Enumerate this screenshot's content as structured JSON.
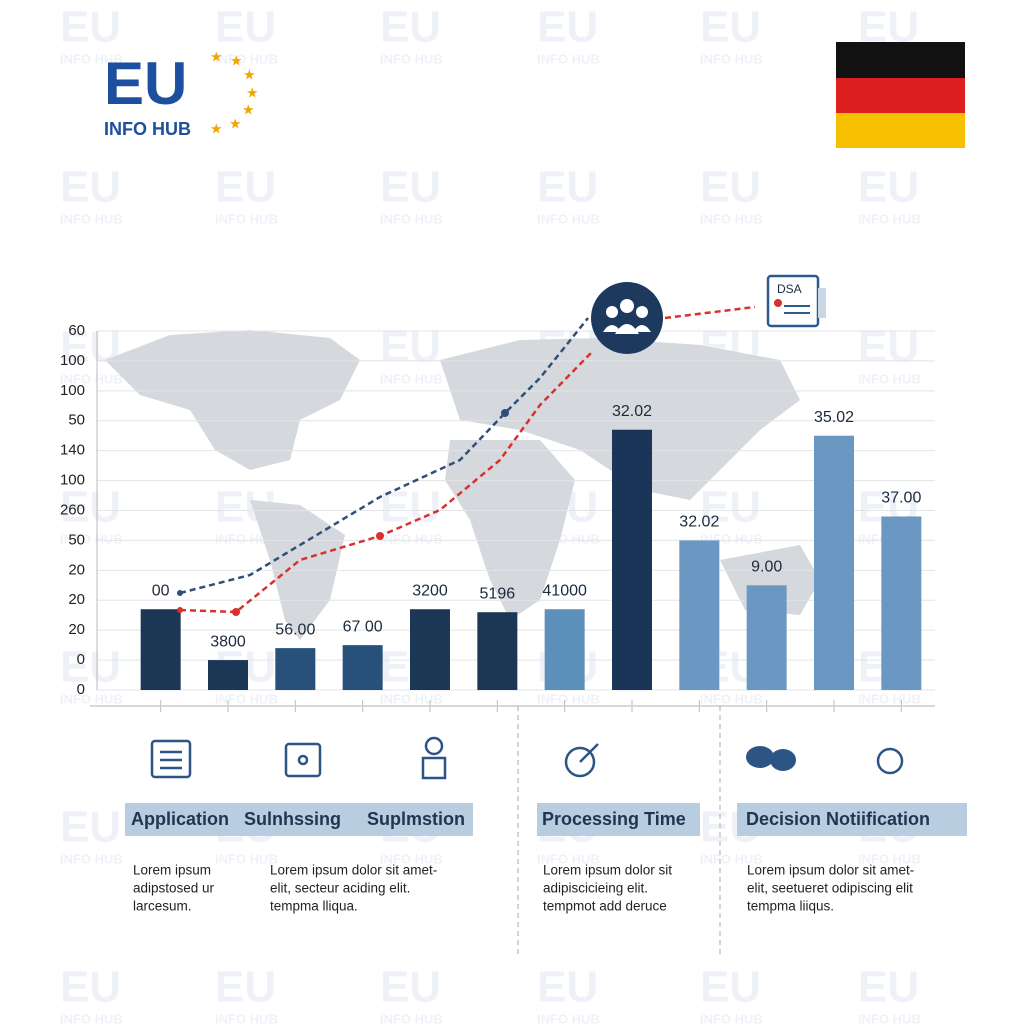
{
  "logo": {
    "main": "EU",
    "sub": "INFO HUB"
  },
  "badge": "DSA",
  "chart_data": {
    "type": "bar",
    "categories": [
      null,
      null,
      null,
      null,
      null,
      null,
      null,
      null,
      null,
      null,
      null,
      null
    ],
    "values": [
      2.7,
      1.0,
      1.4,
      1.5,
      2.7,
      2.6,
      2.7,
      8.7,
      5.0,
      3.5,
      8.5,
      5.8
    ],
    "bar_labels": [
      "00",
      "3800",
      "56.00",
      "67 00",
      "3200",
      "5196",
      "41000",
      "32.02",
      "32.02",
      "9.00",
      "35.02",
      "37.00"
    ],
    "colors": [
      "#1c3656",
      "#1c3656",
      "#27507a",
      "#27507a",
      "#1c3656",
      "#1c3656",
      "#5d8fbb",
      "#1b3558",
      "#6b98c2",
      "#6b98c2",
      "#6b98c2",
      "#6b98c2"
    ],
    "ylim": [
      0,
      12
    ],
    "yticks": [
      0,
      {
        "value": 1,
        "label": "0"
      },
      {
        "value": 2,
        "label": "20"
      },
      {
        "value": 3,
        "label": "20"
      },
      {
        "value": 4,
        "label": "20"
      },
      {
        "value": 5,
        "label": "50"
      },
      {
        "value": 6,
        "label": "260"
      },
      {
        "value": 7,
        "label": "100"
      },
      {
        "value": 8,
        "label": "140"
      },
      {
        "value": 9,
        "label": "50"
      },
      {
        "value": 10,
        "label": "100"
      },
      {
        "value": 11,
        "label": "100"
      },
      {
        "value": 12,
        "label": "60"
      }
    ],
    "grid": true
  },
  "sections": [
    "Application",
    "Sulnhssing",
    "Suplmstion",
    "Processing Time",
    "Decision Notiification"
  ],
  "descriptions": [
    [
      "Lorem ipsum",
      "adipstosed ur",
      "larcesum."
    ],
    [
      "Lorem ipsum dolor sit amet-",
      "elit, secteur aciding elit.",
      "tempma lliqua."
    ],
    [
      "Lorem ipsum dolor sit",
      "adipiscicieing elit.",
      "tempmot add deruce"
    ],
    [
      "Lorem ipsum dolor sit amet-",
      "elit, seetueret odipiscing elit",
      "tempma liiqus."
    ]
  ]
}
